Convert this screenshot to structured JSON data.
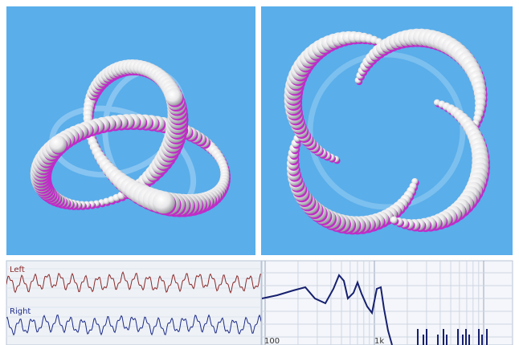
{
  "waveform": {
    "channels": [
      {
        "label": "Left"
      },
      {
        "label": "Right"
      }
    ]
  },
  "spectrum": {
    "axis_labels": [
      "100",
      "1k"
    ]
  }
}
